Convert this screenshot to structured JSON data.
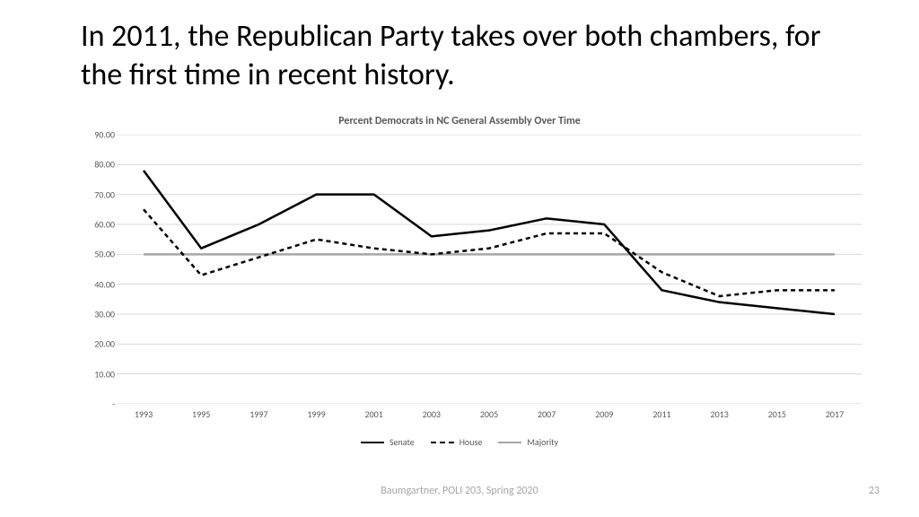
{
  "slide": {
    "title": "In 2011, the Republican Party takes over both chambers, for the first time in recent history.",
    "footer_credit": "Baumgartner, POLI 203, Spring 2020",
    "page_number": "23"
  },
  "chart": {
    "type": "line",
    "title": "Percent Democrats in NC General Assembly Over Time",
    "title_fontsize": 12,
    "title_color": "#595959",
    "background_color": "#ffffff",
    "grid_color": "#d9d9d9",
    "axis_label_color": "#595959",
    "axis_label_fontsize": 10,
    "ylim": [
      0,
      90
    ],
    "ytick_step": 10,
    "y_labels": [
      "-",
      "10.00",
      "20.00",
      "30.00",
      "40.00",
      "50.00",
      "60.00",
      "70.00",
      "80.00",
      "90.00"
    ],
    "x_categories": [
      "1993",
      "1995",
      "1997",
      "1999",
      "2001",
      "2003",
      "2005",
      "2007",
      "2009",
      "2011",
      "2013",
      "2015",
      "2017"
    ],
    "series": [
      {
        "name": "Senate",
        "label": "Senate",
        "color": "#000000",
        "line_width": 2.5,
        "dash": "none",
        "values": [
          78,
          52,
          60,
          70,
          70,
          56,
          58,
          62,
          60,
          38,
          34,
          32,
          30
        ]
      },
      {
        "name": "House",
        "label": "House",
        "color": "#000000",
        "line_width": 2.5,
        "dash": "5,4",
        "values": [
          65,
          43,
          49,
          55,
          52,
          50,
          52,
          57,
          57,
          44,
          36,
          38,
          38
        ]
      },
      {
        "name": "Majority",
        "label": "Majority",
        "color": "#a6a6a6",
        "line_width": 2.5,
        "dash": "none",
        "values": [
          50,
          50,
          50,
          50,
          50,
          50,
          50,
          50,
          50,
          50,
          50,
          50,
          50
        ]
      }
    ],
    "legend": {
      "position": "bottom",
      "items": [
        "Senate",
        "House",
        "Majority"
      ]
    }
  }
}
